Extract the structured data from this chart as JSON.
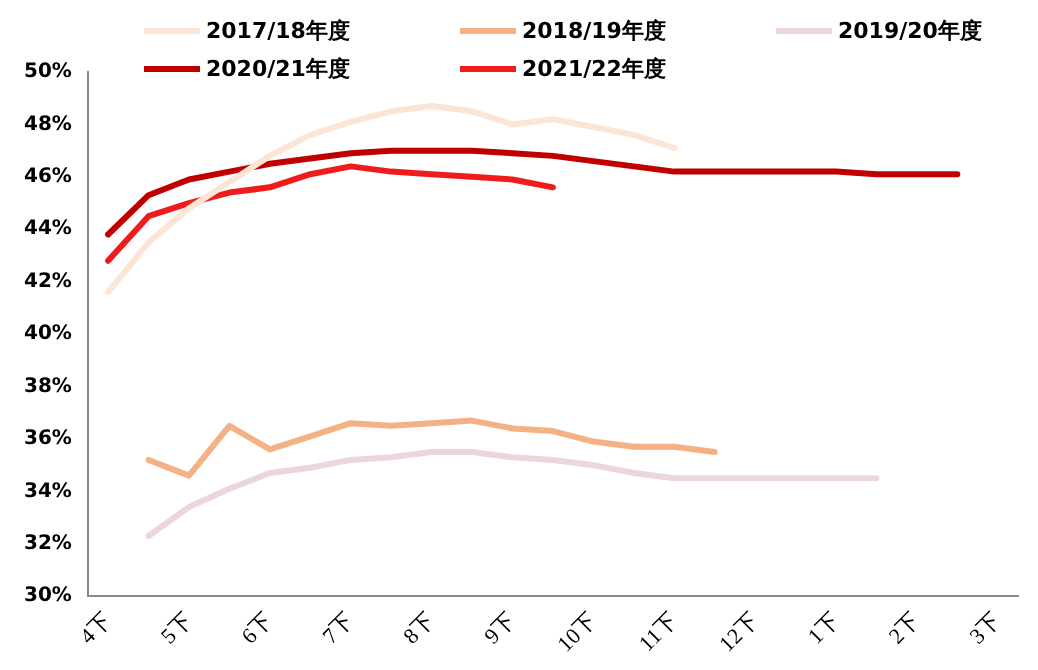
{
  "chart_data": {
    "type": "line",
    "categories": [
      "4下",
      null,
      "5下",
      null,
      "6下",
      null,
      "7下",
      null,
      "8下",
      null,
      "9下",
      null,
      "10下",
      null,
      "11下",
      null,
      "12下",
      null,
      "1下",
      null,
      "2下",
      null,
      "3下"
    ],
    "series": [
      {
        "name": "2017/18年度",
        "color": "#fbe5d6",
        "values": [
          41.6,
          43.5,
          44.8,
          45.8,
          46.8,
          47.6,
          48.1,
          48.5,
          48.7,
          48.5,
          48.0,
          48.2,
          47.9,
          47.6,
          47.1,
          null,
          null,
          null,
          null,
          null,
          null,
          null,
          null
        ]
      },
      {
        "name": "2018/19年度",
        "color": "#f4b183",
        "values": [
          null,
          35.2,
          34.6,
          36.5,
          35.6,
          36.1,
          36.6,
          36.5,
          36.6,
          36.7,
          36.4,
          36.3,
          35.9,
          35.7,
          35.7,
          35.5,
          null,
          null,
          null,
          null,
          null,
          null,
          null
        ]
      },
      {
        "name": "2019/20年度",
        "color": "#ead6db",
        "values": [
          null,
          32.3,
          33.4,
          34.1,
          34.7,
          34.9,
          35.2,
          35.3,
          35.5,
          35.5,
          35.3,
          35.2,
          35.0,
          34.7,
          34.5,
          34.5,
          34.5,
          34.5,
          34.5,
          34.5,
          null,
          null,
          null
        ]
      },
      {
        "name": "2020/21年度",
        "color": "#c00000",
        "values": [
          43.8,
          45.3,
          45.9,
          46.2,
          46.5,
          46.7,
          46.9,
          47.0,
          47.0,
          47.0,
          46.9,
          46.8,
          46.6,
          46.4,
          46.2,
          46.2,
          46.2,
          46.2,
          46.2,
          46.1,
          46.1,
          46.1,
          null
        ]
      },
      {
        "name": "2021/22年度",
        "color": "#ee1c1c",
        "values": [
          42.8,
          44.5,
          45.0,
          45.4,
          45.6,
          46.1,
          46.4,
          46.2,
          46.1,
          46.0,
          45.9,
          45.6,
          null,
          null,
          null,
          null,
          null,
          null,
          null,
          null,
          null,
          null,
          null
        ]
      }
    ],
    "ylim": [
      30,
      50
    ],
    "yticks": [
      {
        "value": 30,
        "label": "30%"
      },
      {
        "value": 32,
        "label": "32%"
      },
      {
        "value": 34,
        "label": "34%"
      },
      {
        "value": 36,
        "label": "36%"
      },
      {
        "value": 38,
        "label": "38%"
      },
      {
        "value": 40,
        "label": "40%"
      },
      {
        "value": 42,
        "label": "42%"
      },
      {
        "value": 44,
        "label": "44%"
      },
      {
        "value": 46,
        "label": "46%"
      },
      {
        "value": 48,
        "label": "48%"
      },
      {
        "value": 50,
        "label": "50%"
      }
    ],
    "grid": false,
    "legend": "top",
    "marker": "none",
    "line_style": "solid"
  }
}
